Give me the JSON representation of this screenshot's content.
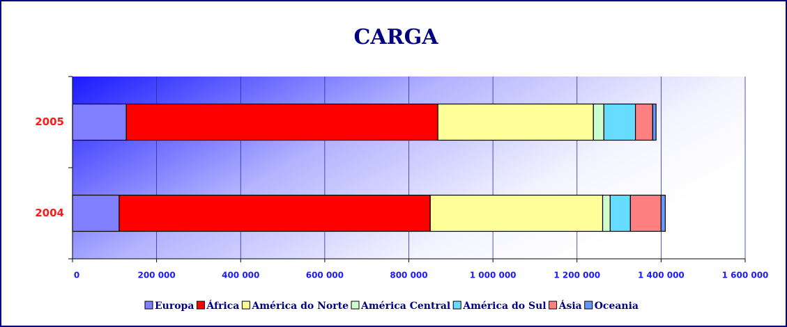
{
  "chart_data": {
    "type": "stacked_barh",
    "title": "CARGA",
    "categories": [
      "2005",
      "2004"
    ],
    "series": [
      {
        "name": "Europa",
        "color": "#7f7fff",
        "values": [
          128000,
          111000
        ]
      },
      {
        "name": "África",
        "color": "#ff0000",
        "values": [
          741000,
          740000
        ]
      },
      {
        "name": "América do Norte",
        "color": "#ffff99",
        "values": [
          370000,
          410000
        ]
      },
      {
        "name": "América Central",
        "color": "#ccffcc",
        "values": [
          25000,
          18000
        ]
      },
      {
        "name": "América do Sul",
        "color": "#66ddff",
        "values": [
          75000,
          48000
        ]
      },
      {
        "name": "Ásia",
        "color": "#ff8080",
        "values": [
          41000,
          73000
        ]
      },
      {
        "name": "Oceania",
        "color": "#6699ff",
        "values": [
          8000,
          10000
        ]
      }
    ],
    "xlim": [
      0,
      1600000
    ],
    "xticks": [
      0,
      {
        "value": 200000,
        "label": "200 000"
      },
      {
        "value": 400000,
        "label": "400 000"
      },
      {
        "value": 600000,
        "label": "600 000"
      },
      {
        "value": 800000,
        "label": "800 000"
      },
      {
        "value": 1000000,
        "label": "1 000 000"
      },
      {
        "value": 1200000,
        "label": "1 200 000"
      },
      {
        "value": 1400000,
        "label": "1 400 000"
      },
      {
        "value": 1600000,
        "label": "1 600 000"
      }
    ],
    "grid": true,
    "legend": "bottom"
  }
}
